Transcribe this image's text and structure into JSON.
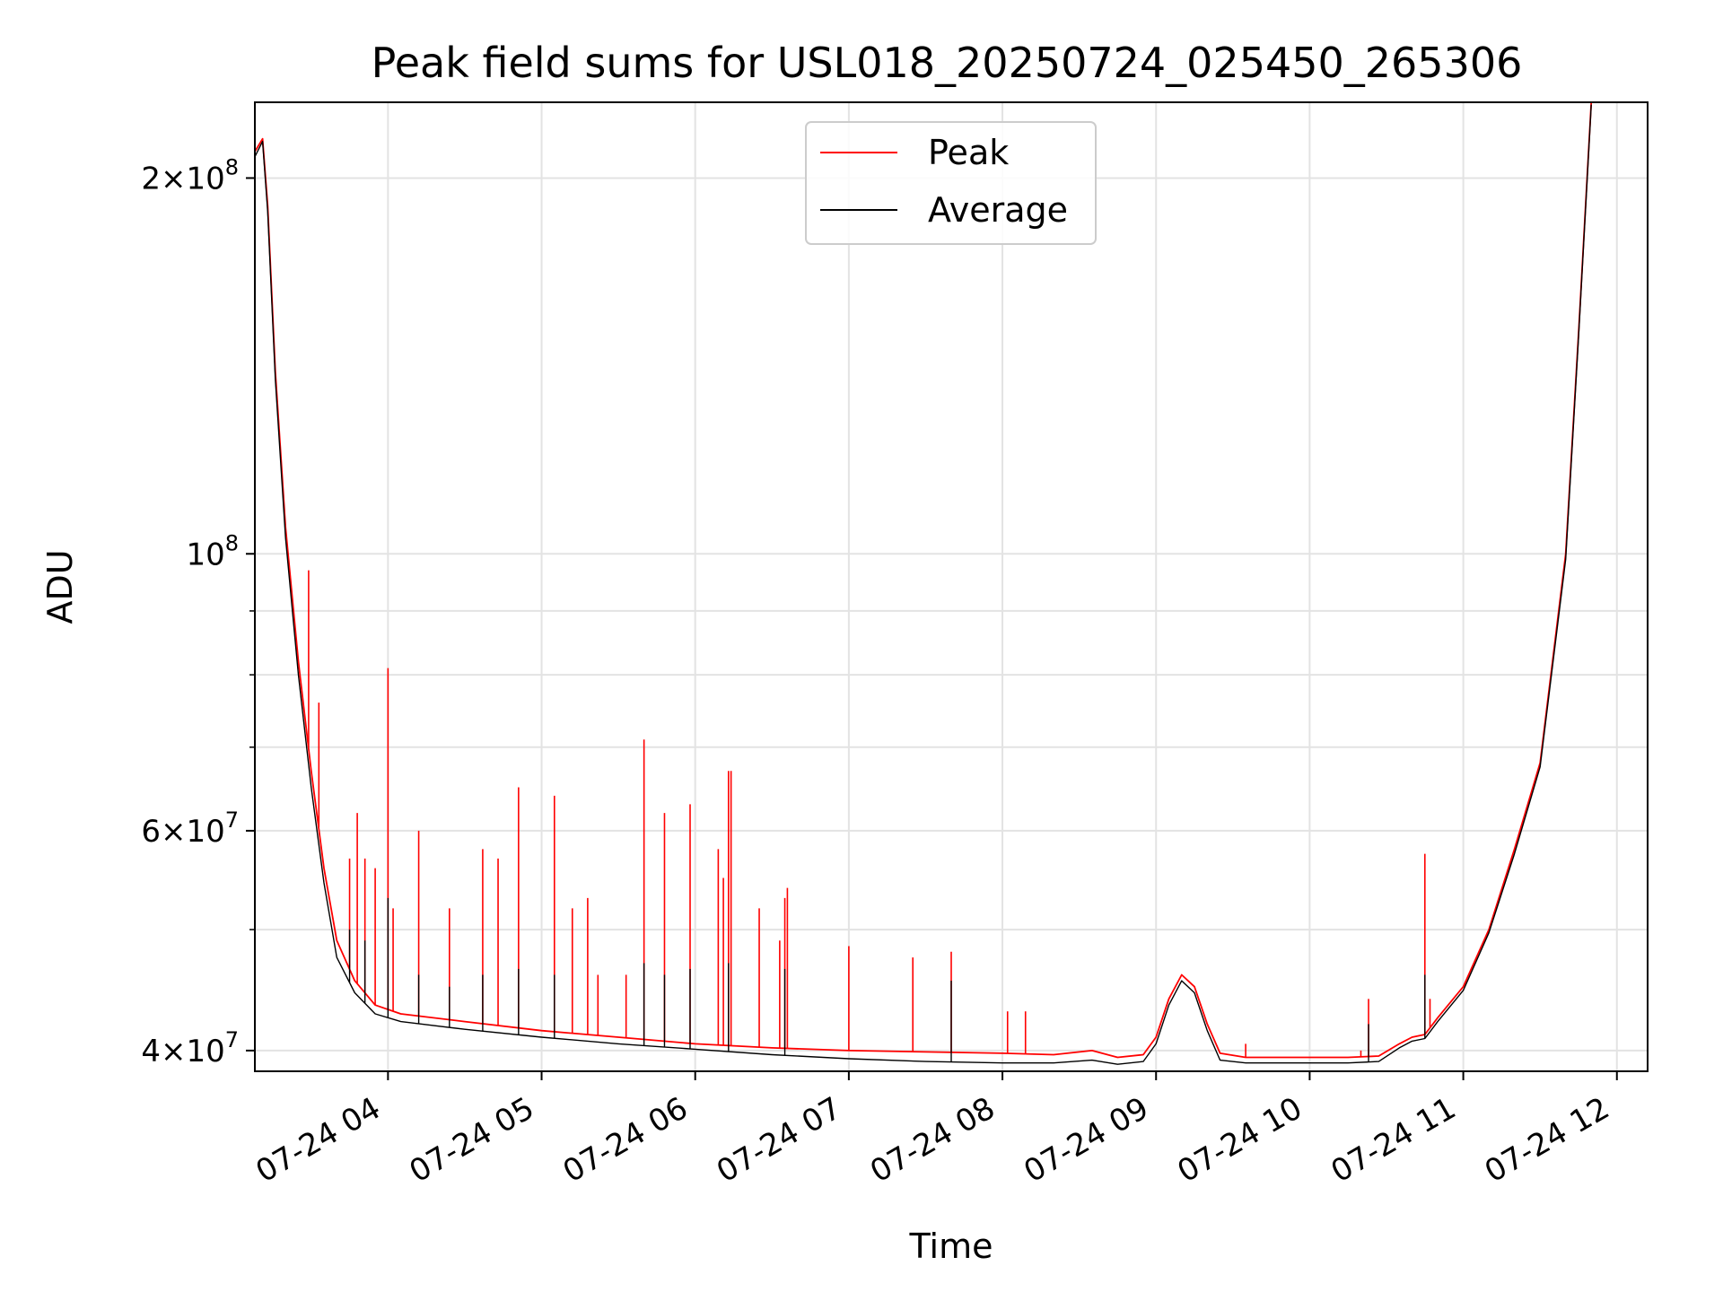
{
  "chart_data": {
    "type": "line",
    "title": "Peak field sums for USL018_20250724_025450_265306",
    "xlabel": "Time",
    "ylabel": "ADU",
    "y_scale": "log",
    "ylim": [
      38500000,
      230000000
    ],
    "xlim": [
      "2025-07-24 03:08",
      "2025-07-24 12:12"
    ],
    "grid": true,
    "legend": {
      "position": "upper center"
    },
    "x_ticks": [
      {
        "value": "2025-07-24 04:00",
        "label": "07-24 04"
      },
      {
        "value": "2025-07-24 05:00",
        "label": "07-24 05"
      },
      {
        "value": "2025-07-24 06:00",
        "label": "07-24 06"
      },
      {
        "value": "2025-07-24 07:00",
        "label": "07-24 07"
      },
      {
        "value": "2025-07-24 08:00",
        "label": "07-24 08"
      },
      {
        "value": "2025-07-24 09:00",
        "label": "07-24 09"
      },
      {
        "value": "2025-07-24 10:00",
        "label": "07-24 10"
      },
      {
        "value": "2025-07-24 11:00",
        "label": "07-24 11"
      },
      {
        "value": "2025-07-24 12:00",
        "label": "07-24 12"
      }
    ],
    "y_major_ticks": [
      {
        "value": 40000000,
        "mant": "4",
        "exp": "7"
      },
      {
        "value": 60000000,
        "mant": "6",
        "exp": "7"
      },
      {
        "value": 100000000,
        "mant": "",
        "exp": "8"
      },
      {
        "value": 200000000,
        "mant": "2",
        "exp": "8"
      }
    ],
    "y_minor_ticks": [
      50000000,
      70000000,
      80000000,
      90000000
    ],
    "series": [
      {
        "name": "Peak",
        "color": "#ff0000",
        "baseline": [
          [
            "2025-07-24 03:08",
            210000000
          ],
          [
            "2025-07-24 03:11",
            215000000
          ],
          [
            "2025-07-24 03:13",
            190000000
          ],
          [
            "2025-07-24 03:16",
            140000000
          ],
          [
            "2025-07-24 03:20",
            105000000
          ],
          [
            "2025-07-24 03:25",
            82000000
          ],
          [
            "2025-07-24 03:30",
            67000000
          ],
          [
            "2025-07-24 03:35",
            56000000
          ],
          [
            "2025-07-24 03:40",
            49000000
          ],
          [
            "2025-07-24 03:47",
            45500000
          ],
          [
            "2025-07-24 03:55",
            43500000
          ],
          [
            "2025-07-24 04:05",
            42800000
          ],
          [
            "2025-07-24 04:30",
            42200000
          ],
          [
            "2025-07-24 05:00",
            41500000
          ],
          [
            "2025-07-24 05:30",
            41000000
          ],
          [
            "2025-07-24 06:00",
            40500000
          ],
          [
            "2025-07-24 06:30",
            40200000
          ],
          [
            "2025-07-24 07:00",
            40000000
          ],
          [
            "2025-07-24 07:30",
            39900000
          ],
          [
            "2025-07-24 08:00",
            39800000
          ],
          [
            "2025-07-24 08:20",
            39700000
          ],
          [
            "2025-07-24 08:35",
            40000000
          ],
          [
            "2025-07-24 08:45",
            39500000
          ],
          [
            "2025-07-24 08:55",
            39700000
          ],
          [
            "2025-07-24 09:00",
            41000000
          ],
          [
            "2025-07-24 09:05",
            44000000
          ],
          [
            "2025-07-24 09:10",
            46000000
          ],
          [
            "2025-07-24 09:15",
            45000000
          ],
          [
            "2025-07-24 09:20",
            42000000
          ],
          [
            "2025-07-24 09:25",
            39800000
          ],
          [
            "2025-07-24 09:35",
            39500000
          ],
          [
            "2025-07-24 10:00",
            39500000
          ],
          [
            "2025-07-24 10:15",
            39500000
          ],
          [
            "2025-07-24 10:27",
            39600000
          ],
          [
            "2025-07-24 10:35",
            40500000
          ],
          [
            "2025-07-24 10:40",
            41000000
          ],
          [
            "2025-07-24 10:45",
            41200000
          ],
          [
            "2025-07-24 10:50",
            42500000
          ],
          [
            "2025-07-24 11:00",
            45000000
          ],
          [
            "2025-07-24 11:10",
            50000000
          ],
          [
            "2025-07-24 11:20",
            58000000
          ],
          [
            "2025-07-24 11:30",
            68000000
          ],
          [
            "2025-07-24 11:40",
            100000000
          ],
          [
            "2025-07-24 11:45",
            150000000
          ],
          [
            "2025-07-24 11:50",
            230000000
          ]
        ],
        "spikes": [
          [
            "2025-07-24 03:29",
            97000000
          ],
          [
            "2025-07-24 03:33",
            76000000
          ],
          [
            "2025-07-24 03:45",
            57000000
          ],
          [
            "2025-07-24 03:48",
            62000000
          ],
          [
            "2025-07-24 03:51",
            57000000
          ],
          [
            "2025-07-24 03:55",
            56000000
          ],
          [
            "2025-07-24 04:00",
            81000000
          ],
          [
            "2025-07-24 04:02",
            52000000
          ],
          [
            "2025-07-24 04:12",
            60000000
          ],
          [
            "2025-07-24 04:24",
            52000000
          ],
          [
            "2025-07-24 04:37",
            58000000
          ],
          [
            "2025-07-24 04:43",
            57000000
          ],
          [
            "2025-07-24 04:51",
            65000000
          ],
          [
            "2025-07-24 05:05",
            64000000
          ],
          [
            "2025-07-24 05:12",
            52000000
          ],
          [
            "2025-07-24 05:18",
            53000000
          ],
          [
            "2025-07-24 05:22",
            46000000
          ],
          [
            "2025-07-24 05:33",
            46000000
          ],
          [
            "2025-07-24 05:40",
            71000000
          ],
          [
            "2025-07-24 05:48",
            62000000
          ],
          [
            "2025-07-24 05:58",
            63000000
          ],
          [
            "2025-07-24 06:09",
            58000000
          ],
          [
            "2025-07-24 06:11",
            55000000
          ],
          [
            "2025-07-24 06:13",
            67000000
          ],
          [
            "2025-07-24 06:14",
            67000000
          ],
          [
            "2025-07-24 06:25",
            52000000
          ],
          [
            "2025-07-24 06:33",
            49000000
          ],
          [
            "2025-07-24 06:35",
            53000000
          ],
          [
            "2025-07-24 06:36",
            54000000
          ],
          [
            "2025-07-24 07:00",
            48500000
          ],
          [
            "2025-07-24 07:25",
            47500000
          ],
          [
            "2025-07-24 07:40",
            48000000
          ],
          [
            "2025-07-24 08:02",
            43000000
          ],
          [
            "2025-07-24 08:09",
            43000000
          ],
          [
            "2025-07-24 09:35",
            40500000
          ],
          [
            "2025-07-24 10:20",
            40000000
          ],
          [
            "2025-07-24 10:23",
            44000000
          ],
          [
            "2025-07-24 10:45",
            57500000
          ],
          [
            "2025-07-24 10:47",
            44000000
          ]
        ]
      },
      {
        "name": "Average",
        "color": "#000000",
        "baseline": [
          [
            "2025-07-24 03:08",
            208000000
          ],
          [
            "2025-07-24 03:11",
            214000000
          ],
          [
            "2025-07-24 03:13",
            188000000
          ],
          [
            "2025-07-24 03:16",
            138000000
          ],
          [
            "2025-07-24 03:20",
            103000000
          ],
          [
            "2025-07-24 03:25",
            80000000
          ],
          [
            "2025-07-24 03:30",
            65000000
          ],
          [
            "2025-07-24 03:35",
            54500000
          ],
          [
            "2025-07-24 03:40",
            47500000
          ],
          [
            "2025-07-24 03:47",
            44500000
          ],
          [
            "2025-07-24 03:55",
            42800000
          ],
          [
            "2025-07-24 04:05",
            42200000
          ],
          [
            "2025-07-24 04:30",
            41600000
          ],
          [
            "2025-07-24 05:00",
            41000000
          ],
          [
            "2025-07-24 05:30",
            40500000
          ],
          [
            "2025-07-24 06:00",
            40100000
          ],
          [
            "2025-07-24 06:30",
            39700000
          ],
          [
            "2025-07-24 07:00",
            39400000
          ],
          [
            "2025-07-24 07:30",
            39200000
          ],
          [
            "2025-07-24 08:00",
            39100000
          ],
          [
            "2025-07-24 08:20",
            39100000
          ],
          [
            "2025-07-24 08:35",
            39300000
          ],
          [
            "2025-07-24 08:45",
            39000000
          ],
          [
            "2025-07-24 08:55",
            39200000
          ],
          [
            "2025-07-24 09:00",
            40500000
          ],
          [
            "2025-07-24 09:05",
            43500000
          ],
          [
            "2025-07-24 09:10",
            45500000
          ],
          [
            "2025-07-24 09:15",
            44500000
          ],
          [
            "2025-07-24 09:20",
            41500000
          ],
          [
            "2025-07-24 09:25",
            39300000
          ],
          [
            "2025-07-24 09:35",
            39100000
          ],
          [
            "2025-07-24 10:00",
            39100000
          ],
          [
            "2025-07-24 10:15",
            39100000
          ],
          [
            "2025-07-24 10:27",
            39200000
          ],
          [
            "2025-07-24 10:35",
            40200000
          ],
          [
            "2025-07-24 10:40",
            40700000
          ],
          [
            "2025-07-24 10:45",
            40900000
          ],
          [
            "2025-07-24 10:50",
            42200000
          ],
          [
            "2025-07-24 11:00",
            44700000
          ],
          [
            "2025-07-24 11:10",
            49700000
          ],
          [
            "2025-07-24 11:20",
            57500000
          ],
          [
            "2025-07-24 11:30",
            67500000
          ],
          [
            "2025-07-24 11:40",
            99000000
          ],
          [
            "2025-07-24 11:45",
            149000000
          ],
          [
            "2025-07-24 11:50",
            229000000
          ]
        ],
        "spikes": [
          [
            "2025-07-24 03:45",
            50000000
          ],
          [
            "2025-07-24 03:51",
            49000000
          ],
          [
            "2025-07-24 04:00",
            53000000
          ],
          [
            "2025-07-24 04:12",
            46000000
          ],
          [
            "2025-07-24 04:24",
            45000000
          ],
          [
            "2025-07-24 04:37",
            46000000
          ],
          [
            "2025-07-24 04:51",
            46500000
          ],
          [
            "2025-07-24 05:05",
            46000000
          ],
          [
            "2025-07-24 05:40",
            47000000
          ],
          [
            "2025-07-24 05:48",
            46000000
          ],
          [
            "2025-07-24 05:58",
            46500000
          ],
          [
            "2025-07-24 06:13",
            47000000
          ],
          [
            "2025-07-24 06:35",
            46500000
          ],
          [
            "2025-07-24 07:40",
            45500000
          ],
          [
            "2025-07-24 10:23",
            42000000
          ],
          [
            "2025-07-24 10:45",
            46000000
          ]
        ]
      }
    ]
  }
}
